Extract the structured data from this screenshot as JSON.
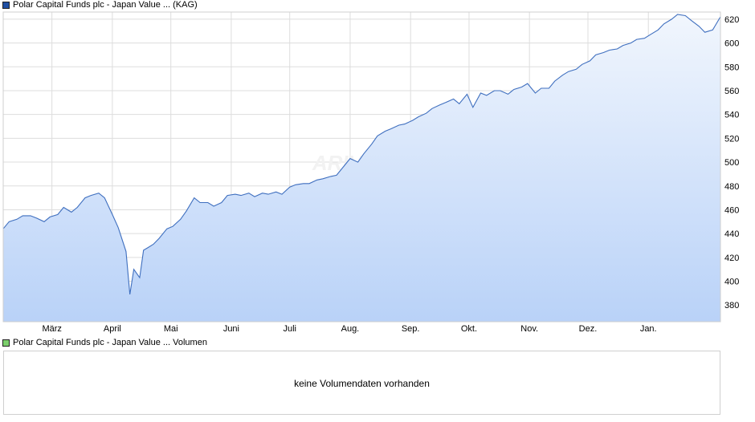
{
  "colors": {
    "line": "#3f6fbf",
    "fill_top": "#f1f6fd",
    "fill_bottom": "#b9d2f8",
    "grid": "#dddddd",
    "price_swatch": "#1f4fa3",
    "volume_swatch": "#7ccf6c"
  },
  "legend": {
    "price": "Polar Capital Funds plc - Japan Value ... (KAG)",
    "volume": "Polar Capital Funds plc - Japan Value ... Volumen"
  },
  "watermark": "ARIVA.DE",
  "volume_panel": {
    "message": "keine Volumendaten vorhanden"
  },
  "chart_data": {
    "type": "area",
    "title": "Polar Capital Funds plc - Japan Value ... (KAG)",
    "xlabel": "",
    "ylabel": "",
    "ylim": [
      366,
      626
    ],
    "yticks": [
      380,
      400,
      420,
      440,
      460,
      480,
      500,
      520,
      540,
      560,
      580,
      600,
      620
    ],
    "xlim": [
      "2024-02-05",
      "2025-02-07"
    ],
    "xticks": [
      {
        "label": "März",
        "date": "2024-03-01"
      },
      {
        "label": "April",
        "date": "2024-04-01"
      },
      {
        "label": "Mai",
        "date": "2024-05-01"
      },
      {
        "label": "Juni",
        "date": "2024-06-01"
      },
      {
        "label": "Juli",
        "date": "2024-07-01"
      },
      {
        "label": "Aug.",
        "date": "2024-08-01"
      },
      {
        "label": "Sep.",
        "date": "2024-09-01"
      },
      {
        "label": "Okt.",
        "date": "2024-10-01"
      },
      {
        "label": "Nov.",
        "date": "2024-11-01"
      },
      {
        "label": "Dez.",
        "date": "2024-12-01"
      },
      {
        "label": "Jan.",
        "date": "2025-01-01"
      }
    ],
    "grid": true,
    "y_axis_side": "right",
    "series": [
      {
        "x": [
          "2024-02-05",
          "2024-02-08",
          "2024-02-12",
          "2024-02-15",
          "2024-02-19",
          "2024-02-22",
          "2024-02-26",
          "2024-02-29",
          "2024-03-04",
          "2024-03-07",
          "2024-03-11",
          "2024-03-14",
          "2024-03-18",
          "2024-03-21",
          "2024-03-25",
          "2024-03-28",
          "2024-04-01",
          "2024-04-04",
          "2024-04-08",
          "2024-04-10",
          "2024-04-12",
          "2024-04-15",
          "2024-04-17",
          "2024-04-19",
          "2024-04-22",
          "2024-04-25",
          "2024-04-29",
          "2024-05-02",
          "2024-05-06",
          "2024-05-09",
          "2024-05-13",
          "2024-05-16",
          "2024-05-20",
          "2024-05-23",
          "2024-05-27",
          "2024-05-30",
          "2024-06-03",
          "2024-06-06",
          "2024-06-10",
          "2024-06-13",
          "2024-06-17",
          "2024-06-20",
          "2024-06-24",
          "2024-06-27",
          "2024-07-01",
          "2024-07-04",
          "2024-07-08",
          "2024-07-11",
          "2024-07-15",
          "2024-07-18",
          "2024-07-22",
          "2024-07-25",
          "2024-07-29",
          "2024-08-01",
          "2024-08-05",
          "2024-08-08",
          "2024-08-12",
          "2024-08-15",
          "2024-08-19",
          "2024-08-22",
          "2024-08-26",
          "2024-08-29",
          "2024-09-02",
          "2024-09-05",
          "2024-09-09",
          "2024-09-12",
          "2024-09-16",
          "2024-09-19",
          "2024-09-23",
          "2024-09-26",
          "2024-09-30",
          "2024-10-03",
          "2024-10-07",
          "2024-10-10",
          "2024-10-14",
          "2024-10-17",
          "2024-10-21",
          "2024-10-24",
          "2024-10-28",
          "2024-10-31",
          "2024-11-04",
          "2024-11-07",
          "2024-11-11",
          "2024-11-14",
          "2024-11-18",
          "2024-11-21",
          "2024-11-25",
          "2024-11-28",
          "2024-12-02",
          "2024-12-05",
          "2024-12-09",
          "2024-12-12",
          "2024-12-16",
          "2024-12-19",
          "2024-12-23",
          "2024-12-26",
          "2024-12-30",
          "2025-01-02",
          "2025-01-06",
          "2025-01-09",
          "2025-01-13",
          "2025-01-16",
          "2025-01-20",
          "2025-01-23",
          "2025-01-27",
          "2025-01-30",
          "2025-02-03",
          "2025-02-07"
        ],
        "values": [
          444,
          450,
          452,
          455,
          455,
          453,
          450,
          454,
          456,
          462,
          458,
          462,
          470,
          472,
          474,
          470,
          456,
          445,
          425,
          389,
          410,
          403,
          426,
          428,
          431,
          436,
          444,
          446,
          452,
          459,
          470,
          466,
          466,
          463,
          466,
          472,
          473,
          472,
          474,
          471,
          474,
          473,
          475,
          473,
          479,
          481,
          482,
          482,
          485,
          486,
          488,
          489,
          497,
          503,
          500,
          507,
          515,
          522,
          526,
          528,
          531,
          532,
          535,
          538,
          541,
          545,
          548,
          550,
          553,
          549,
          557,
          546,
          558,
          556,
          560,
          560,
          557,
          561,
          563,
          566,
          558,
          562,
          562,
          568,
          573,
          576,
          578,
          582,
          585,
          590,
          592,
          594,
          595,
          598,
          600,
          603,
          604,
          607,
          611,
          616,
          620,
          624,
          623,
          619,
          614,
          609,
          611,
          622
        ]
      }
    ]
  }
}
